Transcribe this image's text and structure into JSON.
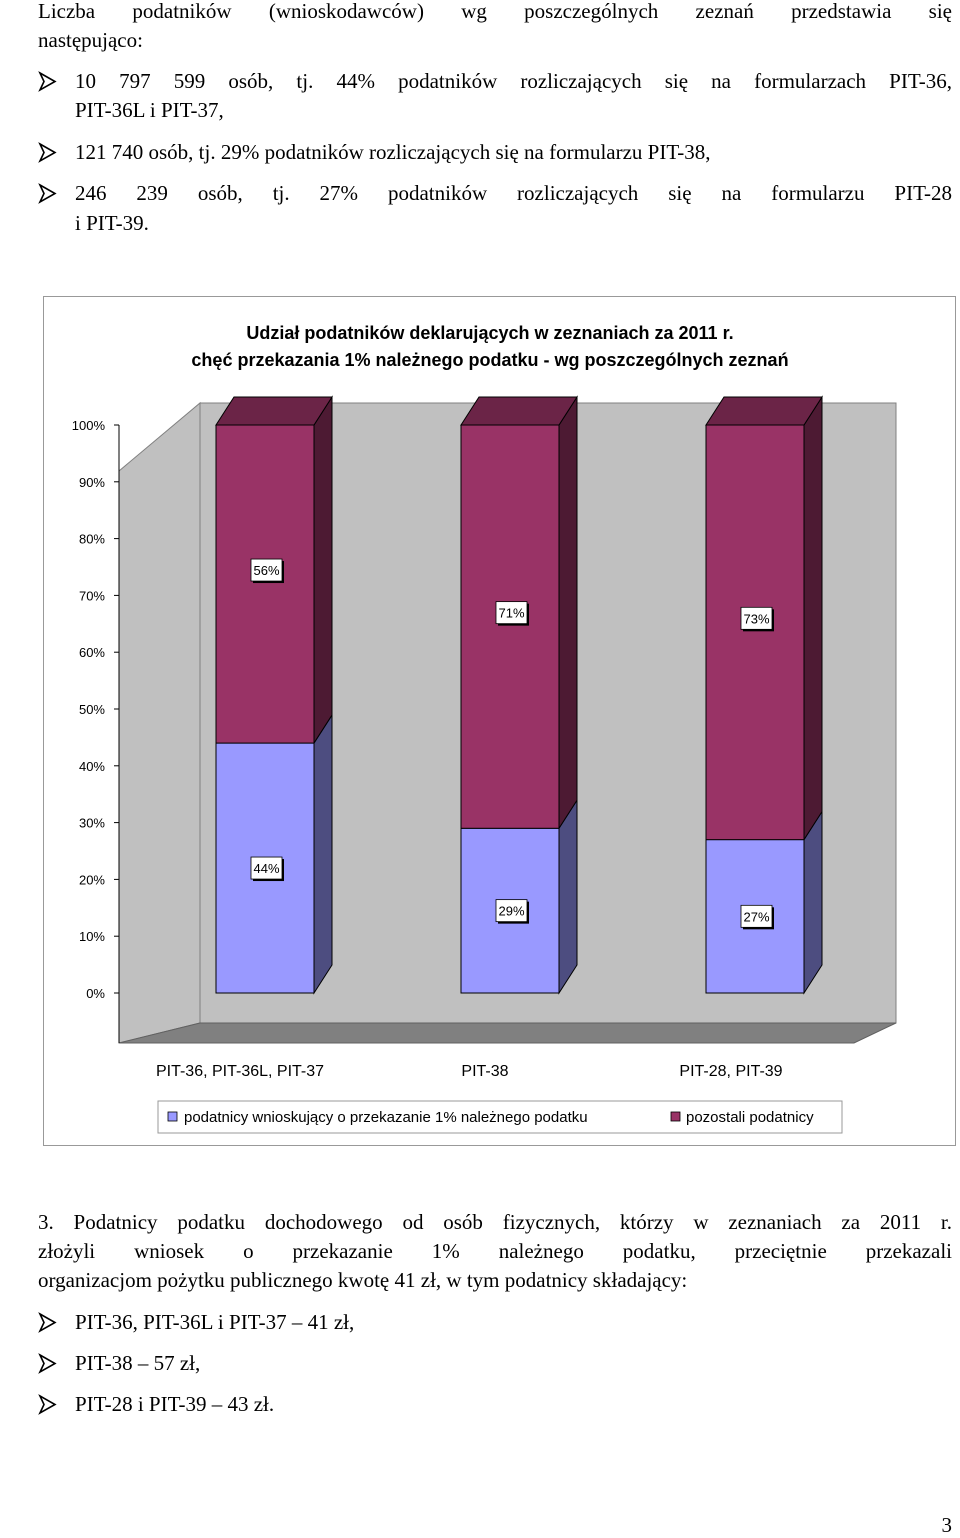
{
  "intro": {
    "line1": "Liczba podatników (wnioskodawców) wg poszczególnych zeznań przedstawia się",
    "line2": "następująco:"
  },
  "bullets_top": [
    {
      "line1": "10 797 599 osób, tj. 44% podatników rozliczających się na formularzach PIT-36,",
      "line2": "PIT-36L i PIT-37,"
    },
    {
      "line1": "121 740 osób, tj. 29% podatników rozliczających się na formularzu PIT-38,",
      "line2": ""
    },
    {
      "line1": "246 239 osób, tj. 27% podatników rozliczających się na formularzu PIT-28",
      "line2": "i PIT-39."
    }
  ],
  "chart_data": {
    "type": "bar",
    "stacked": true,
    "percent_stacked": true,
    "style": "3d",
    "title": "Udział podatników deklarujących w zeznaniach za 2011 r.",
    "subtitle": "chęć przekazania 1% należnego podatku - wg poszczególnych zeznań",
    "categories": [
      "PIT-36, PIT-36L, PIT-37",
      "PIT-38",
      "PIT-28, PIT-39"
    ],
    "series": [
      {
        "name": "podatnicy wnioskujący o przekazanie 1% należnego podatku",
        "values": [
          44,
          29,
          27
        ],
        "labels": [
          "44%",
          "29%",
          "27%"
        ],
        "color": "#9999ff",
        "side_color": "#4d4d80",
        "top_color": "#7a7acc"
      },
      {
        "name": "pozostali podatnicy",
        "values": [
          56,
          71,
          73
        ],
        "labels": [
          "56%",
          "71%",
          "73%"
        ],
        "color": "#993366",
        "side_color": "#4d1a33",
        "top_color": "#6b2447"
      }
    ],
    "y_ticks": [
      "0%",
      "10%",
      "20%",
      "30%",
      "40%",
      "50%",
      "60%",
      "70%",
      "80%",
      "90%",
      "100%"
    ],
    "ylim": [
      0,
      100
    ],
    "grid": false,
    "wall_color": "#c0c0c0",
    "floor_color": "#808080",
    "legend_position": "bottom"
  },
  "section3": {
    "line1": "3. Podatnicy podatku dochodowego od osób fizycznych, którzy w zeznaniach za 2011 r.",
    "line2": "złożyli wniosek o przekazanie 1% należnego podatku, przeciętnie przekazali",
    "line3": "organizacjom pożytku publicznego kwotę 41 zł, w tym podatnicy składający:"
  },
  "bullets_bottom": [
    "PIT-36, PIT-36L i PIT-37 – 41 zł,",
    "PIT-38 – 57 zł,",
    "PIT-28 i PIT-39 – 43 zł."
  ],
  "page_number": "3"
}
